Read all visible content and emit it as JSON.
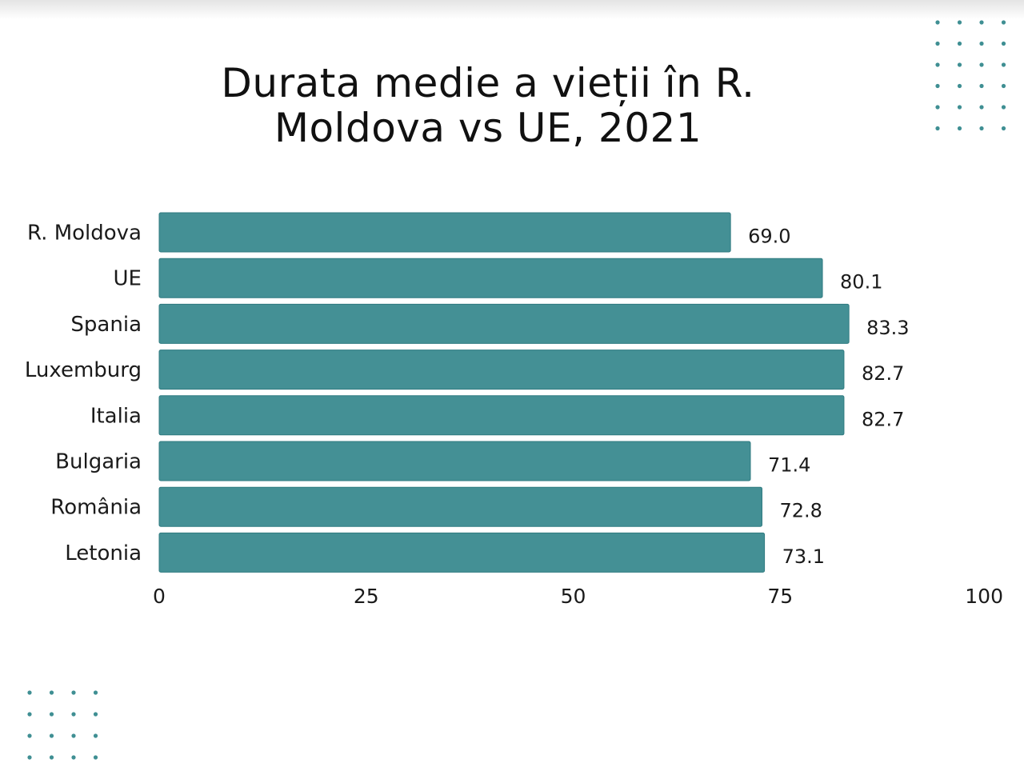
{
  "colors": {
    "bar": "#449095",
    "bar_stroke": "#2f7a80",
    "text": "#1a1a1a",
    "dots": "#3f8f93"
  },
  "chart_data": {
    "type": "bar",
    "orientation": "horizontal",
    "title": "Durata medie a vieții în R. Moldova vs UE, 2021",
    "xlabel": "",
    "ylabel": "",
    "categories": [
      "R. Moldova",
      "UE",
      "Spania",
      "Luxemburg",
      "Italia",
      "Bulgaria",
      "România",
      "Letonia"
    ],
    "values": [
      69.0,
      80.1,
      83.3,
      82.7,
      82.7,
      71.4,
      72.8,
      73.1
    ],
    "value_labels": [
      "69.0",
      "80.1",
      "83.3",
      "82.7",
      "82.7",
      "71.4",
      "72.8",
      "73.1"
    ],
    "xlim": [
      0,
      100
    ],
    "xticks": [
      0,
      25,
      50,
      75,
      100
    ],
    "grid": false,
    "legend": "none"
  }
}
